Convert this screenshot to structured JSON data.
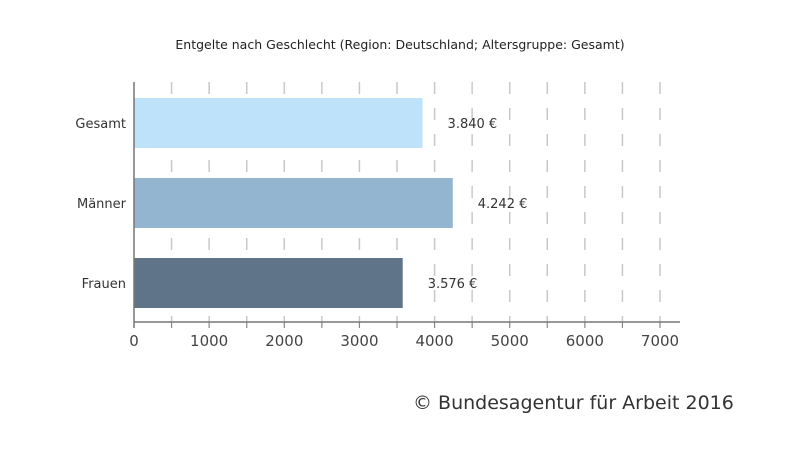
{
  "chart_data": {
    "type": "bar",
    "orientation": "horizontal",
    "title": "Entgelte nach Geschlecht (Region: Deutschland; Altersgruppe: Gesamt)",
    "categories": [
      "Gesamt",
      "Männer",
      "Frauen"
    ],
    "values": [
      3840,
      4242,
      3576
    ],
    "value_labels": [
      "3.840 €",
      "4.242 €",
      "3.576 €"
    ],
    "colors": [
      "#bfe2fb",
      "#93b5cf",
      "#5f7489"
    ],
    "xlabel": "",
    "ylabel": "",
    "xlim": [
      0,
      7000
    ],
    "xticks": [
      0,
      1000,
      2000,
      3000,
      4000,
      5000,
      6000,
      7000
    ],
    "grid": "dashed vertical every 500",
    "legend": "none"
  },
  "footer": {
    "copyright": "© Bundesagentur für Arbeit 2016"
  }
}
